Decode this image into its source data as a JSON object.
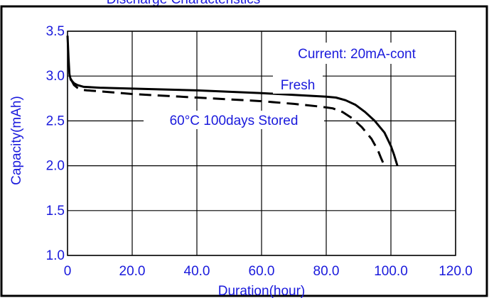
{
  "chart_data": {
    "type": "line",
    "title": "Discharge Characteristics",
    "xlabel": "Duration(hour)",
    "ylabel": "Capacity(mAh)",
    "xlim": [
      0,
      120
    ],
    "ylim": [
      1.0,
      3.5
    ],
    "x_ticks": [
      "0",
      "20.0",
      "40.0",
      "60.0",
      "80.0",
      "100.0",
      "120.0"
    ],
    "y_ticks": [
      "1.0",
      "1.5",
      "2.0",
      "2.5",
      "3.0",
      "3.5"
    ],
    "grid": true,
    "annotations": {
      "current": "Current: 20mA-cont",
      "fresh": "Fresh",
      "stored": "60°C 100days Stored"
    },
    "series": [
      {
        "name": "Fresh",
        "style": "solid",
        "x": [
          0,
          0.3,
          0.6,
          1,
          2,
          3,
          5,
          10,
          20,
          40,
          60,
          70,
          80,
          83,
          86,
          89,
          92,
          95,
          98,
          100,
          101,
          102
        ],
        "y": [
          3.45,
          3.2,
          3.02,
          2.96,
          2.92,
          2.9,
          2.88,
          2.87,
          2.86,
          2.84,
          2.81,
          2.79,
          2.77,
          2.76,
          2.73,
          2.68,
          2.6,
          2.5,
          2.37,
          2.22,
          2.12,
          2.0
        ]
      },
      {
        "name": "60°C 100days Stored",
        "style": "dashed",
        "x": [
          1,
          2,
          3,
          4,
          6,
          10,
          20,
          40,
          60,
          70,
          78,
          82,
          85,
          88,
          91,
          94,
          96,
          97,
          98
        ],
        "y": [
          2.97,
          2.9,
          2.87,
          2.85,
          2.84,
          2.83,
          2.8,
          2.76,
          2.72,
          2.69,
          2.66,
          2.64,
          2.6,
          2.53,
          2.43,
          2.3,
          2.17,
          2.08,
          2.0
        ]
      }
    ]
  }
}
